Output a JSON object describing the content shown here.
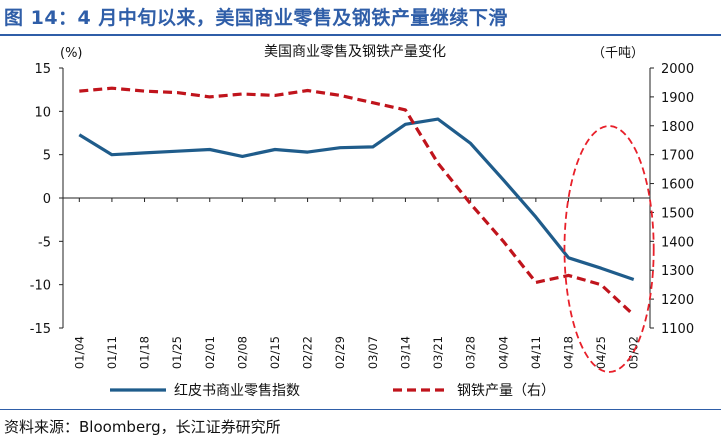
{
  "figure_title": "图 14：4 月中旬以来，美国商业零售及钢铁产量继续下滑",
  "source": "资料来源：Bloomberg，长江证券研究所",
  "chart_data": {
    "type": "line",
    "title": "美国商业零售及钢铁产量变化",
    "left_unit": "(%)",
    "right_unit": "（千吨）",
    "categories": [
      "01/04",
      "01/11",
      "01/18",
      "01/25",
      "02/01",
      "02/08",
      "02/15",
      "02/22",
      "02/29",
      "03/07",
      "03/14",
      "03/21",
      "03/28",
      "04/04",
      "04/11",
      "04/18",
      "04/25",
      "05/02"
    ],
    "ylim_left": [
      -15,
      15
    ],
    "yticks_left": [
      15,
      10,
      5,
      0,
      -5,
      -10,
      -15
    ],
    "ylim_right": [
      1100,
      2000
    ],
    "yticks_right": [
      2000,
      1900,
      1800,
      1700,
      1600,
      1500,
      1400,
      1300,
      1200,
      1100
    ],
    "series": [
      {
        "name": "红皮书商业零售指数",
        "axis": "left",
        "style": "solid",
        "color": "#1f5c8b",
        "values": [
          7.3,
          5.0,
          5.2,
          5.4,
          5.6,
          4.8,
          5.6,
          5.3,
          5.8,
          5.9,
          8.5,
          9.1,
          6.3,
          2.1,
          -2.2,
          -6.9,
          -8.1,
          -9.4
        ]
      },
      {
        "name": "钢铁产量（右）",
        "axis": "right",
        "style": "dashed",
        "color": "#c0141c",
        "values": [
          1920,
          1930,
          1920,
          1915,
          1900,
          1910,
          1905,
          1922,
          1905,
          1880,
          1855,
          1670,
          1530,
          1400,
          1258,
          1282,
          1250,
          1145
        ]
      }
    ],
    "annotation": {
      "shape": "dashed-ellipse",
      "color": "#e8202a",
      "covers": [
        "04/18",
        "04/25",
        "05/02"
      ]
    },
    "legend_placement": "bottom",
    "grid": false
  }
}
